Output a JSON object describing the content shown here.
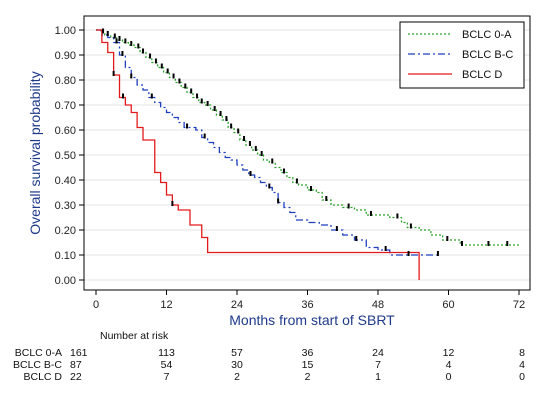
{
  "chart_data": {
    "type": "line",
    "xlabel": "Months from start of SBRT",
    "ylabel": "Overall survival probability",
    "xlim": [
      0,
      72
    ],
    "ylim": [
      0,
      1
    ],
    "x_ticks": [
      "0",
      "12",
      "24",
      "36",
      "48",
      "60",
      "72"
    ],
    "y_ticks": [
      "0.00",
      "0.10",
      "0.20",
      "0.30",
      "0.40",
      "0.50",
      "0.60",
      "0.70",
      "0.80",
      "0.90",
      "1.00"
    ],
    "grid": "horizontal",
    "legend_position": "top-right",
    "series": [
      {
        "name": "BCLC 0-A",
        "color": "#2ca02c",
        "dash": "dotted",
        "steps": [
          [
            0,
            1.0
          ],
          [
            0.8,
            0.99
          ],
          [
            1.5,
            0.98
          ],
          [
            2.5,
            0.97
          ],
          [
            3.5,
            0.96
          ],
          [
            4.5,
            0.95
          ],
          [
            5.5,
            0.94
          ],
          [
            6.5,
            0.93
          ],
          [
            7.5,
            0.91
          ],
          [
            8.5,
            0.89
          ],
          [
            9.5,
            0.87
          ],
          [
            10.5,
            0.85
          ],
          [
            11.5,
            0.83
          ],
          [
            12.5,
            0.81
          ],
          [
            13.5,
            0.79
          ],
          [
            14.5,
            0.77
          ],
          [
            15.5,
            0.75
          ],
          [
            16.5,
            0.73
          ],
          [
            17.5,
            0.71
          ],
          [
            18.5,
            0.7
          ],
          [
            19.5,
            0.68
          ],
          [
            20.5,
            0.66
          ],
          [
            21.5,
            0.64
          ],
          [
            22.5,
            0.61
          ],
          [
            23.5,
            0.59
          ],
          [
            24.5,
            0.56
          ],
          [
            25.5,
            0.54
          ],
          [
            26.5,
            0.52
          ],
          [
            27.5,
            0.5
          ],
          [
            28.5,
            0.48
          ],
          [
            29.5,
            0.47
          ],
          [
            30.5,
            0.45
          ],
          [
            31.5,
            0.43
          ],
          [
            32.5,
            0.41
          ],
          [
            33.5,
            0.39
          ],
          [
            34.5,
            0.38
          ],
          [
            36,
            0.36
          ],
          [
            37.5,
            0.35
          ],
          [
            38.5,
            0.32
          ],
          [
            40,
            0.3
          ],
          [
            42,
            0.29
          ],
          [
            44,
            0.28
          ],
          [
            46,
            0.26
          ],
          [
            50,
            0.25
          ],
          [
            52,
            0.23
          ],
          [
            53,
            0.21
          ],
          [
            55,
            0.2
          ],
          [
            57,
            0.18
          ],
          [
            59,
            0.16
          ],
          [
            62,
            0.14
          ],
          [
            72,
            0.14
          ]
        ],
        "censor_x": [
          1.2,
          2.0,
          3.2,
          4.0,
          5.0,
          6.0,
          7.2,
          8.0,
          9.2,
          10.2,
          11.2,
          12.2,
          13.2,
          14.2,
          15.2,
          16.2,
          17.2,
          18.0,
          19.0,
          20.2,
          21.2,
          22.2,
          23.0,
          24.2,
          25.2,
          26.2,
          27.2,
          28.2,
          30.0,
          32.0,
          34.2,
          36.6,
          39.2,
          43.0,
          46.8,
          51.3,
          53.6,
          59.8,
          62.3,
          66.8,
          70.0
        ]
      },
      {
        "name": "BCLC B-C",
        "color": "#1f3fbf",
        "dash": "dashdot",
        "steps": [
          [
            0,
            1.0
          ],
          [
            1,
            0.98
          ],
          [
            2,
            0.97
          ],
          [
            3,
            0.95
          ],
          [
            4,
            0.9
          ],
          [
            5,
            0.85
          ],
          [
            6,
            0.81
          ],
          [
            7,
            0.78
          ],
          [
            8,
            0.76
          ],
          [
            9,
            0.73
          ],
          [
            10,
            0.71
          ],
          [
            11,
            0.69
          ],
          [
            12,
            0.67
          ],
          [
            13,
            0.65
          ],
          [
            14,
            0.63
          ],
          [
            15,
            0.61
          ],
          [
            17,
            0.6
          ],
          [
            18,
            0.57
          ],
          [
            19,
            0.55
          ],
          [
            20,
            0.53
          ],
          [
            21,
            0.51
          ],
          [
            22,
            0.49
          ],
          [
            23,
            0.48
          ],
          [
            24,
            0.46
          ],
          [
            25,
            0.44
          ],
          [
            26,
            0.42
          ],
          [
            27,
            0.41
          ],
          [
            28,
            0.39
          ],
          [
            29,
            0.37
          ],
          [
            30,
            0.35
          ],
          [
            31,
            0.31
          ],
          [
            32,
            0.29
          ],
          [
            33,
            0.27
          ],
          [
            34,
            0.24
          ],
          [
            36,
            0.23
          ],
          [
            38,
            0.22
          ],
          [
            40,
            0.2
          ],
          [
            42,
            0.18
          ],
          [
            44,
            0.16
          ],
          [
            46,
            0.13
          ],
          [
            48,
            0.12
          ],
          [
            50,
            0.1
          ],
          [
            55,
            0.1
          ],
          [
            58,
            0.1
          ]
        ],
        "censor_x": [
          3.5,
          4.5,
          6.0,
          9.5,
          15.5,
          18.5,
          26.3,
          29.5,
          31.0,
          41.0,
          44.3,
          49.3,
          53.2,
          58.2
        ]
      },
      {
        "name": "BCLC D",
        "color": "#e31a1c",
        "dash": "solid",
        "steps": [
          [
            0,
            1.0
          ],
          [
            1,
            0.95
          ],
          [
            2,
            0.91
          ],
          [
            3,
            0.82
          ],
          [
            4,
            0.73
          ],
          [
            5,
            0.7
          ],
          [
            6,
            0.67
          ],
          [
            7,
            0.61
          ],
          [
            8,
            0.56
          ],
          [
            10,
            0.43
          ],
          [
            11,
            0.39
          ],
          [
            12,
            0.34
          ],
          [
            13,
            0.3
          ],
          [
            14,
            0.28
          ],
          [
            16,
            0.22
          ],
          [
            18,
            0.17
          ],
          [
            19,
            0.11
          ],
          [
            55,
            0.11
          ],
          [
            55,
            0.0
          ]
        ],
        "censor_x": [
          3.0,
          4.6,
          13.0
        ]
      }
    ],
    "risk_table": {
      "title": "Number at risk",
      "time_points": [
        0,
        12,
        24,
        36,
        48,
        60,
        72
      ],
      "rows": [
        {
          "label": "BCLC 0-A",
          "counts": [
            "161",
            "113",
            "57",
            "36",
            "24",
            "12",
            "8"
          ]
        },
        {
          "label": "BCLC B-C",
          "counts": [
            "87",
            "54",
            "30",
            "15",
            "7",
            "4",
            "4"
          ]
        },
        {
          "label": "BCLC D",
          "counts": [
            "22",
            "7",
            "2",
            "2",
            "1",
            "0",
            "0"
          ]
        }
      ]
    }
  }
}
